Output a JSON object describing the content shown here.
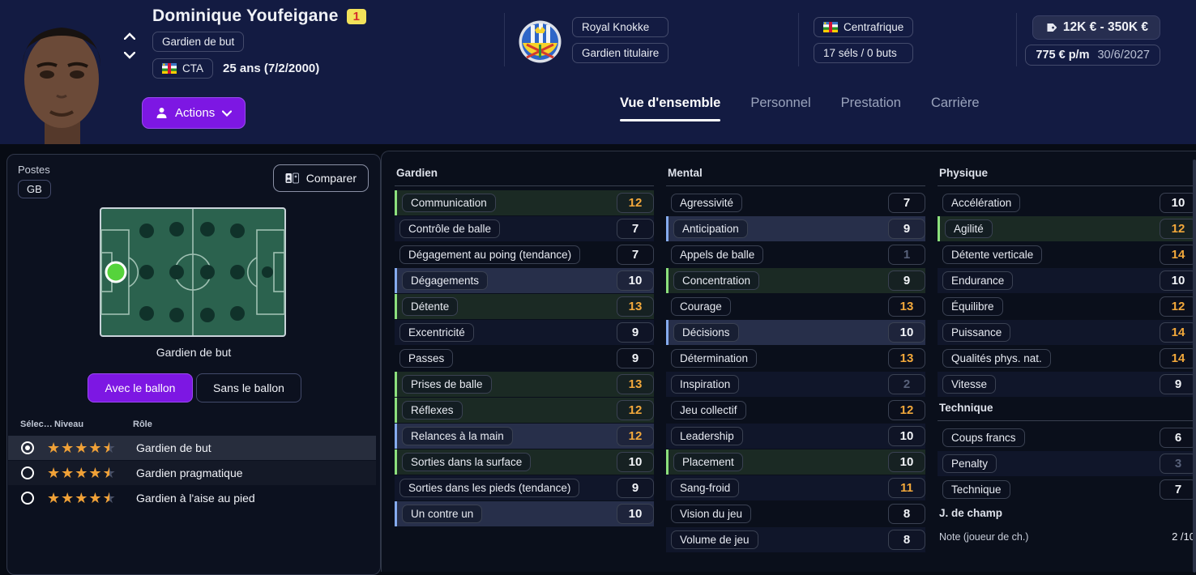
{
  "player": {
    "name": "Dominique Youfeigane",
    "squad_number": "1",
    "position": "Gardien de but",
    "nationality_code": "CTA",
    "age_dob": "25 ans (7/2/2000)",
    "club": "Royal Knokke",
    "squad_status": "Gardien titulaire",
    "nation": "Centrafrique",
    "caps": "17 séls / 0 buts",
    "value_range": "12K € - 350K €",
    "wage": "775 € p/m",
    "contract_end": "30/6/2027"
  },
  "actions": {
    "label": "Actions"
  },
  "tabs": [
    {
      "label": "Vue d'ensemble",
      "active": true
    },
    {
      "label": "Personnel",
      "active": false
    },
    {
      "label": "Prestation",
      "active": false
    },
    {
      "label": "Carrière",
      "active": false
    }
  ],
  "positions_panel": {
    "title": "Postes",
    "badge": "GB",
    "compare_button": "Comparer",
    "pitch_caption": "Gardien de but",
    "toggles": [
      {
        "label": "Avec le ballon",
        "active": true
      },
      {
        "label": "Sans le ballon",
        "active": false
      }
    ],
    "table_headers": [
      "Sélec…",
      "Niveau",
      "Rôle"
    ],
    "roles": [
      {
        "name": "Gardien de but",
        "stars": 4.5,
        "selected": true
      },
      {
        "name": "Gardien pragmatique",
        "stars": 4.5,
        "selected": false
      },
      {
        "name": "Gardien à l'aise au pied",
        "stars": 4.5,
        "selected": false
      }
    ]
  },
  "attributes": {
    "columns": [
      {
        "sections": [
          {
            "title": "Gardien",
            "rows": [
              {
                "label": "Communication",
                "value": "12",
                "highlight": "green"
              },
              {
                "label": "Contrôle de balle",
                "value": "7",
                "highlight": "none"
              },
              {
                "label": "Dégagement au poing (tendance)",
                "value": "7",
                "highlight": "none"
              },
              {
                "label": "Dégagements",
                "value": "10",
                "highlight": "blue"
              },
              {
                "label": "Détente",
                "value": "13",
                "highlight": "green"
              },
              {
                "label": "Excentricité",
                "value": "9",
                "highlight": "none"
              },
              {
                "label": "Passes",
                "value": "9",
                "highlight": "none"
              },
              {
                "label": "Prises de balle",
                "value": "13",
                "highlight": "green"
              },
              {
                "label": "Réflexes",
                "value": "12",
                "highlight": "green"
              },
              {
                "label": "Relances à la main",
                "value": "12",
                "highlight": "blue"
              },
              {
                "label": "Sorties dans la surface",
                "value": "10",
                "highlight": "green"
              },
              {
                "label": "Sorties dans les pieds (tendance)",
                "value": "9",
                "highlight": "none"
              },
              {
                "label": "Un contre un",
                "value": "10",
                "highlight": "blue"
              }
            ]
          }
        ]
      },
      {
        "sections": [
          {
            "title": "Mental",
            "rows": [
              {
                "label": "Agressivité",
                "value": "7",
                "highlight": "none"
              },
              {
                "label": "Anticipation",
                "value": "9",
                "highlight": "blue"
              },
              {
                "label": "Appels de balle",
                "value": "1",
                "highlight": "none"
              },
              {
                "label": "Concentration",
                "value": "9",
                "highlight": "green"
              },
              {
                "label": "Courage",
                "value": "13",
                "highlight": "none"
              },
              {
                "label": "Décisions",
                "value": "10",
                "highlight": "blue"
              },
              {
                "label": "Détermination",
                "value": "13",
                "highlight": "none"
              },
              {
                "label": "Inspiration",
                "value": "2",
                "highlight": "none"
              },
              {
                "label": "Jeu collectif",
                "value": "12",
                "highlight": "none"
              },
              {
                "label": "Leadership",
                "value": "10",
                "highlight": "none"
              },
              {
                "label": "Placement",
                "value": "10",
                "highlight": "green"
              },
              {
                "label": "Sang-froid",
                "value": "11",
                "highlight": "none"
              },
              {
                "label": "Vision du jeu",
                "value": "8",
                "highlight": "none"
              },
              {
                "label": "Volume de jeu",
                "value": "8",
                "highlight": "none"
              }
            ]
          }
        ]
      },
      {
        "sections": [
          {
            "title": "Physique",
            "rows": [
              {
                "label": "Accélération",
                "value": "10",
                "highlight": "none"
              },
              {
                "label": "Agilité",
                "value": "12",
                "highlight": "green"
              },
              {
                "label": "Détente verticale",
                "value": "14",
                "highlight": "none"
              },
              {
                "label": "Endurance",
                "value": "10",
                "highlight": "none"
              },
              {
                "label": "Équilibre",
                "value": "12",
                "highlight": "none"
              },
              {
                "label": "Puissance",
                "value": "14",
                "highlight": "none"
              },
              {
                "label": "Qualités phys. nat.",
                "value": "14",
                "highlight": "none"
              },
              {
                "label": "Vitesse",
                "value": "9",
                "highlight": "none"
              }
            ]
          },
          {
            "title": "Technique",
            "rows": [
              {
                "label": "Coups francs",
                "value": "6",
                "highlight": "none"
              },
              {
                "label": "Penalty",
                "value": "3",
                "highlight": "none"
              },
              {
                "label": "Technique",
                "value": "7",
                "highlight": "none"
              }
            ]
          },
          {
            "title": "J. de champ",
            "note_label": "Note (joueur de ch.)",
            "note_value": "2 /10"
          }
        ]
      }
    ]
  },
  "colors": {
    "accent_purple": "#7D17E3",
    "attr_high": "#F2A83B",
    "attr_low": "#58617A",
    "green_row": "#1B2A24",
    "blue_row": "#272F4A",
    "star_gold": "#F0A137",
    "header_bg": "#131B42",
    "pitch_green": "#2B624E",
    "selected_dot": "#55D33B"
  }
}
